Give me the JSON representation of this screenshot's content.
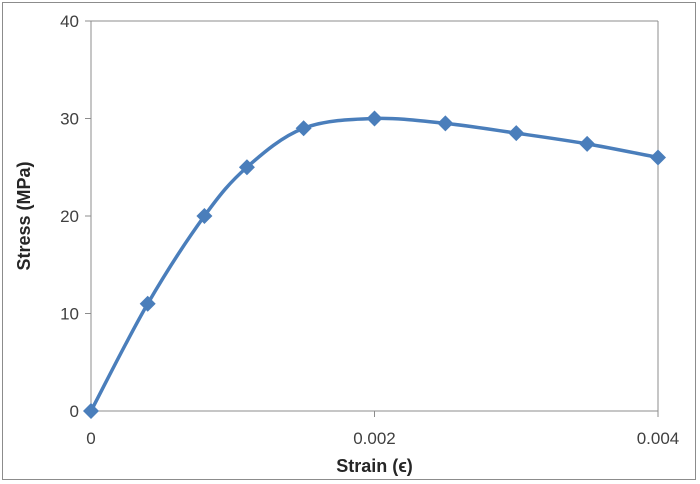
{
  "colors": {
    "series": "#4a7ebb",
    "axis": "#8c8c8c",
    "text": "#404040"
  },
  "chart_data": {
    "type": "scatter",
    "title": "",
    "xlabel": "Strain (ϵ)",
    "ylabel": "Stress (MPa)",
    "xlim": [
      0,
      0.004
    ],
    "ylim": [
      0,
      40
    ],
    "xticks": [
      0,
      0.002,
      0.004
    ],
    "xtick_labels": [
      "0",
      "0.002",
      "0.004"
    ],
    "yticks": [
      0,
      10,
      20,
      30,
      40
    ],
    "ytick_labels": [
      "0",
      "10",
      "20",
      "30",
      "40"
    ],
    "grid": false,
    "legend": "none",
    "line_style": "smooth",
    "marker": "diamond",
    "series": [
      {
        "x": [
          0,
          0.0004,
          0.0008,
          0.0011,
          0.0015,
          0.002,
          0.0025,
          0.003,
          0.0035,
          0.004
        ],
        "y": [
          0,
          11,
          20,
          25,
          29,
          30,
          29.5,
          28.5,
          27.4,
          26
        ]
      }
    ]
  }
}
